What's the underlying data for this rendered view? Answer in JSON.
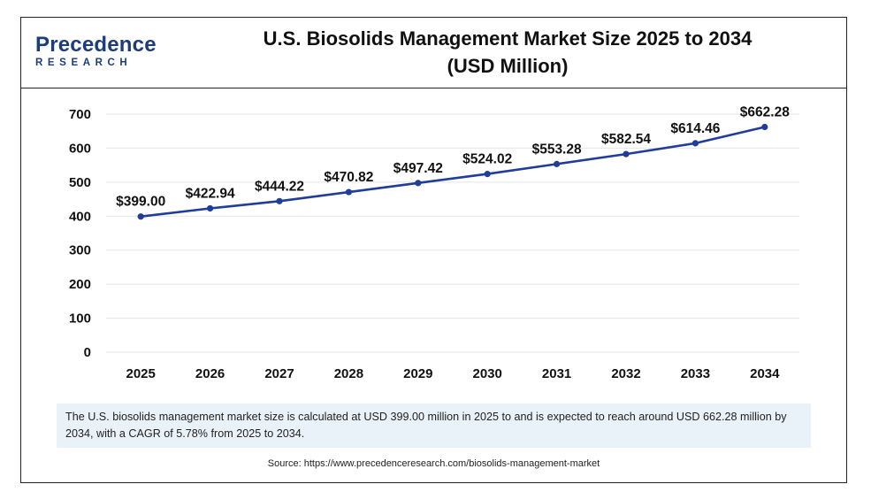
{
  "logo": {
    "top": "Precedence",
    "bottom": "RESEARCH"
  },
  "title_line1": "U.S. Biosolids Management Market Size 2025 to 2034",
  "title_line2": "(USD Million)",
  "chart_data": {
    "type": "line",
    "title": "U.S. Biosolids Management Market Size 2025 to 2034 (USD Million)",
    "categories": [
      "2025",
      "2026",
      "2027",
      "2028",
      "2029",
      "2030",
      "2031",
      "2032",
      "2033",
      "2034"
    ],
    "series": [
      {
        "values": [
          399.0,
          422.94,
          444.22,
          470.82,
          497.42,
          524.02,
          553.28,
          582.54,
          614.46,
          662.28
        ]
      }
    ],
    "data_labels": [
      "$399.00",
      "$422.94",
      "$444.22",
      "$470.82",
      "$497.42",
      "$524.02",
      "$553.28",
      "$582.54",
      "$614.46",
      "$662.28"
    ],
    "yticks": [
      0,
      100,
      200,
      300,
      400,
      500,
      600,
      700
    ],
    "ylim": [
      0,
      700
    ],
    "grid": true,
    "line_color": "#1f3d99"
  },
  "description": "The U.S. biosolids management market size is calculated at USD 399.00 million in 2025 to and is expected to reach around USD 662.28 million by 2034, with a CAGR of 5.78% from 2025 to 2034.",
  "source": "Source: https://www.precedenceresearch.com/biosolids-management-market"
}
